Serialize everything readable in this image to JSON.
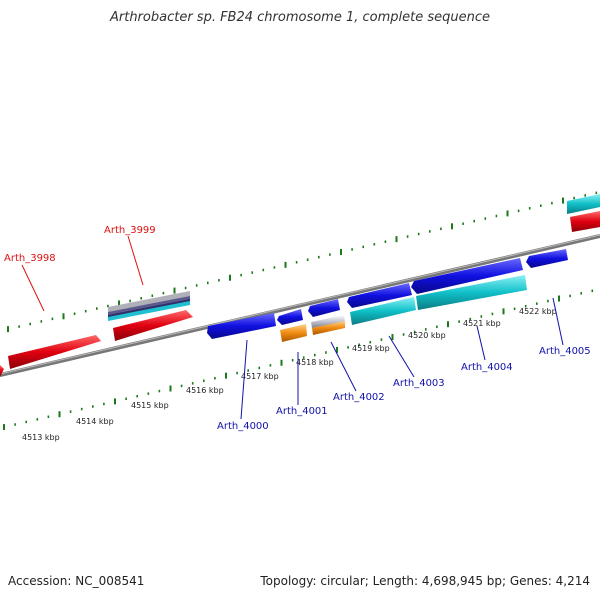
{
  "title": "Arthrobacter sp. FB24 chromosome 1, complete sequence",
  "footer": {
    "accession": "Accession: NC_008541",
    "stats": "Topology: circular; Length: 4,698,945 bp; Genes: 4,214"
  },
  "colors": {
    "forward_label": "#dd1111",
    "reverse_label": "#1111aa",
    "tick": "#1a7a1a",
    "backbone": "#888888",
    "gene_red": "#e00010",
    "gene_blue": "#1010e0",
    "gene_cyan": "#10c0c8",
    "gene_orange": "#f08a10",
    "gene_grey": "#b8b8c8"
  },
  "kbp_labels": [
    "4513 kbp",
    "4514 kbp",
    "4515 kbp",
    "4516 kbp",
    "4517 kbp",
    "4518 kbp",
    "4519 kbp",
    "4520 kbp",
    "4521 kbp",
    "4522 kbp"
  ],
  "gene_labels": [
    {
      "text": "Arth_3998",
      "strand": "forward"
    },
    {
      "text": "Arth_3999",
      "strand": "forward"
    },
    {
      "text": "Arth_4000",
      "strand": "reverse"
    },
    {
      "text": "Arth_4001",
      "strand": "reverse"
    },
    {
      "text": "Arth_4002",
      "strand": "reverse"
    },
    {
      "text": "Arth_4003",
      "strand": "reverse"
    },
    {
      "text": "Arth_4004",
      "strand": "reverse"
    },
    {
      "text": "Arth_4005",
      "strand": "reverse"
    }
  ]
}
